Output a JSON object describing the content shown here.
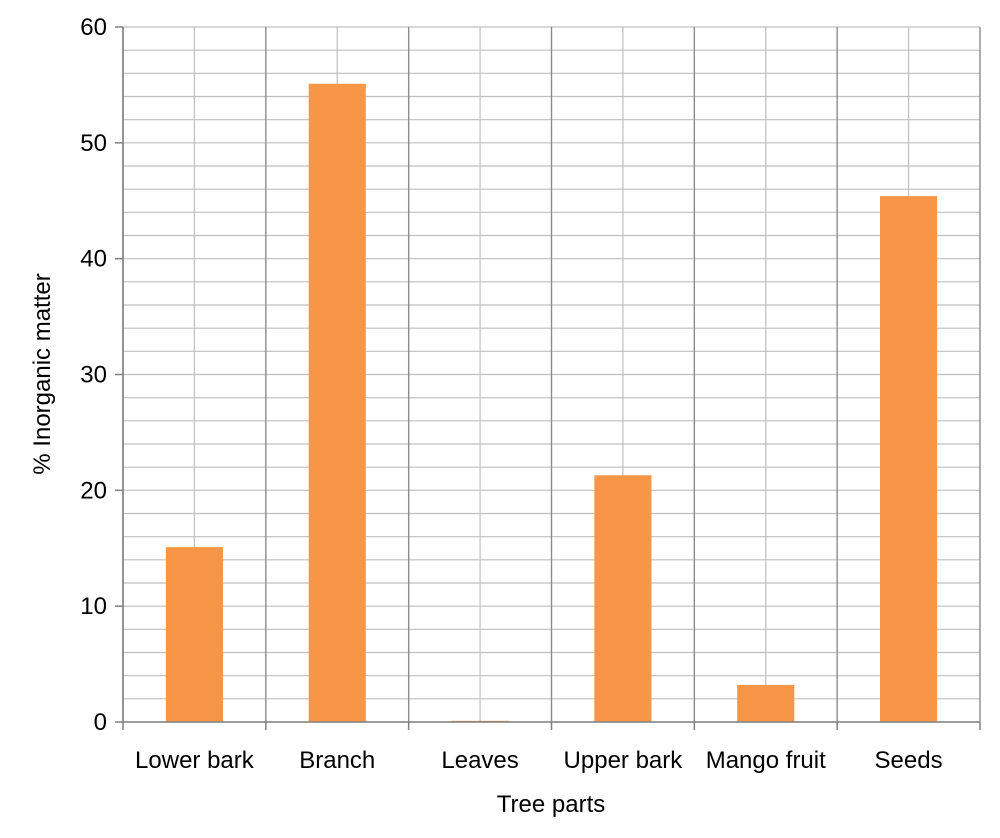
{
  "chart_data": {
    "type": "bar",
    "categories": [
      "Lower bark",
      "Branch",
      "Leaves",
      "Upper bark",
      "Mango fruit",
      "Seeds"
    ],
    "values": [
      15.1,
      55.1,
      0.1,
      21.3,
      3.2,
      45.4
    ],
    "xlabel": "Tree parts",
    "ylabel": "% Inorganic matter",
    "ylim": [
      0,
      60
    ],
    "yticks": [
      0,
      10,
      20,
      30,
      40,
      50,
      60
    ],
    "bar_color": "#f79646",
    "grid": true,
    "legend": "none"
  }
}
